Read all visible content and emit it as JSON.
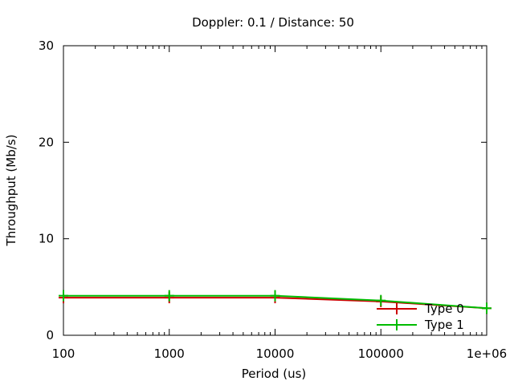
{
  "chart_data": {
    "type": "line",
    "title": "Doppler: 0.1 / Distance: 50",
    "xlabel": "Period (us)",
    "ylabel": "Throughput (Mb/s)",
    "xscale": "log",
    "xlim": [
      100,
      1000000
    ],
    "ylim": [
      0,
      30
    ],
    "xticks": [
      100,
      1000,
      10000,
      100000,
      1000000
    ],
    "xtick_labels": [
      "100",
      "1000",
      "10000",
      "100000",
      "1e+06"
    ],
    "yticks": [
      0,
      10,
      20,
      30
    ],
    "ytick_labels": [
      "0",
      "10",
      "20",
      "30"
    ],
    "grid": false,
    "legend_position": "bottom-right",
    "series": [
      {
        "name": "Type 0",
        "color": "#cc0000",
        "x": [
          100,
          1000,
          10000,
          100000,
          1000000
        ],
        "y": [
          3.9,
          3.9,
          3.9,
          3.5,
          2.8
        ]
      },
      {
        "name": "Type 1",
        "color": "#00bb00",
        "x": [
          100,
          1000,
          10000,
          100000,
          1000000
        ],
        "y": [
          4.1,
          4.1,
          4.1,
          3.6,
          2.8
        ]
      }
    ]
  }
}
